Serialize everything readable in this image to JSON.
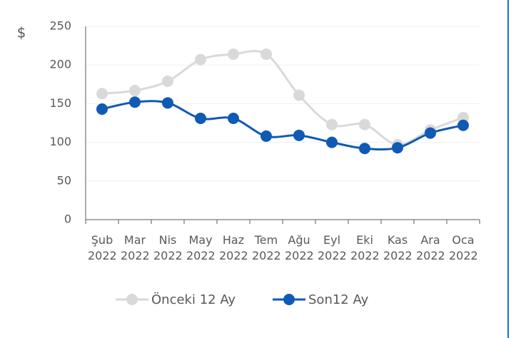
{
  "chart_data": {
    "type": "line",
    "y_label": "$",
    "categories": [
      "Şub 2022",
      "Mar 2022",
      "Nis 2022",
      "May 2022",
      "Haz 2022",
      "Tem 2022",
      "Ağu 2022",
      "Eyl 2022",
      "Eki 2022",
      "Kas 2022",
      "Ara 2022",
      "Oca 2022"
    ],
    "series": [
      {
        "name": "Önceki 12 Ay",
        "color": "#d9d9d9",
        "values": [
          163,
          167,
          179,
          207,
          214,
          214,
          161,
          123,
          123,
          97,
          116,
          132
        ]
      },
      {
        "name": "Son12 Ay",
        "color": "#0f5ab4",
        "values": [
          143,
          152,
          151,
          131,
          131,
          108,
          109,
          100,
          92,
          93,
          112,
          122
        ]
      }
    ],
    "ylim": [
      0,
      250
    ],
    "yticks": [
      0,
      50,
      100,
      150,
      200,
      250
    ],
    "grid": true,
    "legend": "bottom"
  }
}
